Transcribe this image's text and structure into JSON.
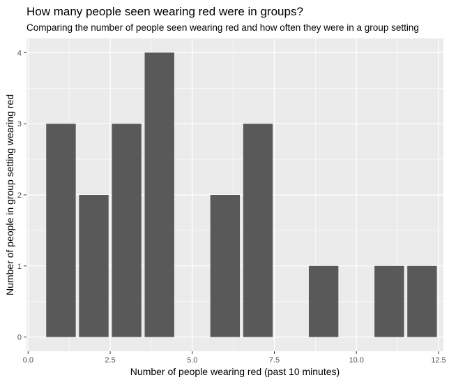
{
  "chart_data": {
    "type": "bar",
    "title": "How many people seen wearing red were in groups?",
    "subtitle": "Comparing the number of people seen wearing red and how often they were in a group setting",
    "xlabel": "Number of people wearing red (past 10 minutes)",
    "ylabel": "Number of people in group setting wearing red",
    "x": [
      1,
      2,
      3,
      4,
      6,
      7,
      9,
      11,
      12
    ],
    "values": [
      3,
      2,
      3,
      4,
      2,
      3,
      1,
      1,
      1
    ],
    "bar_width": 0.9,
    "xlim": [
      -0.05,
      12.65
    ],
    "ylim": [
      -0.2,
      4.2
    ],
    "xticks": [
      0,
      2.5,
      5,
      7.5,
      10,
      12.5
    ],
    "xtick_labels": [
      "0.0",
      "2.5",
      "5.0",
      "7.5",
      "10.0",
      "12.5"
    ],
    "yticks": [
      0,
      1,
      2,
      3,
      4
    ],
    "ytick_labels": [
      "0",
      "1",
      "2",
      "3",
      "4"
    ],
    "grid": true,
    "colors": {
      "panel_bg": "#ebebeb",
      "grid_major": "#ffffff",
      "bar_fill": "#595959",
      "tick_text": "#4d4d4d",
      "tick_mark": "#333333"
    }
  }
}
